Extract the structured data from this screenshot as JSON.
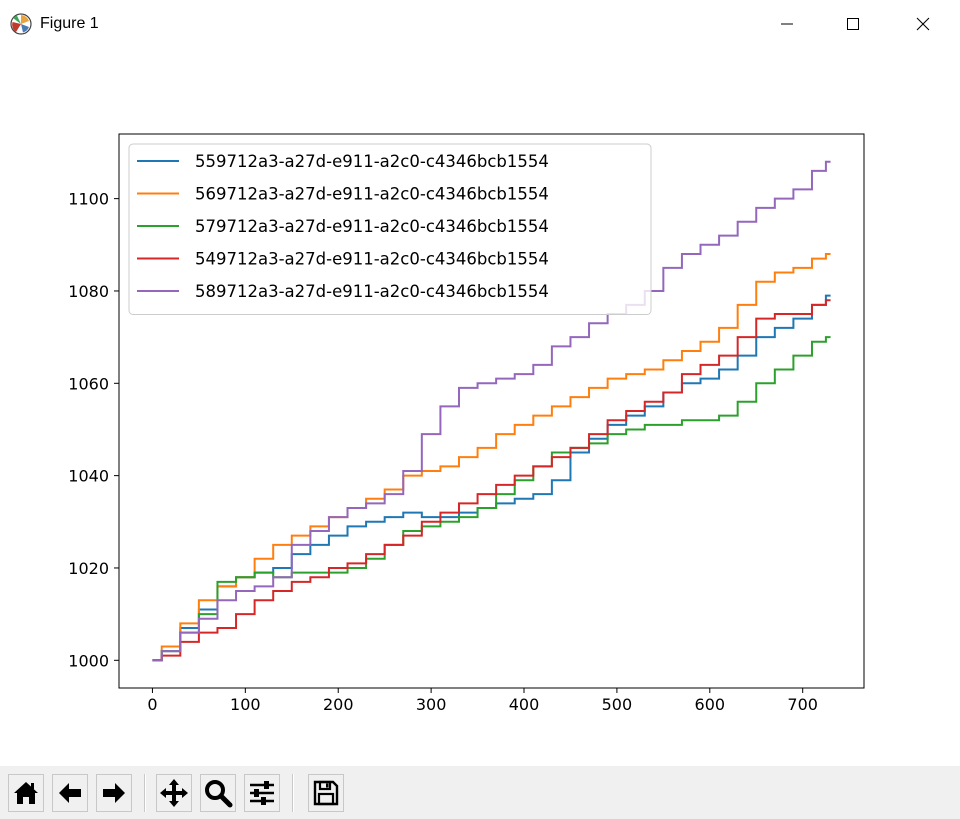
{
  "window": {
    "title": "Figure 1",
    "app_icon": "matplotlib-icon",
    "controls": [
      "minimize-icon",
      "maximize-icon",
      "close-icon"
    ]
  },
  "toolbar": {
    "buttons": [
      {
        "name": "home-button",
        "icon": "home-icon"
      },
      {
        "name": "back-button",
        "icon": "arrow-left-icon"
      },
      {
        "name": "forward-button",
        "icon": "arrow-right-icon"
      },
      {
        "name": "pan-button",
        "icon": "move-icon"
      },
      {
        "name": "zoom-button",
        "icon": "magnifier-icon"
      },
      {
        "name": "configure-subplots-button",
        "icon": "sliders-icon"
      },
      {
        "name": "save-button",
        "icon": "floppy-disk-icon"
      }
    ]
  },
  "chart_data": {
    "type": "line",
    "title": "",
    "xlabel": "",
    "ylabel": "",
    "xlim": [
      -36,
      766
    ],
    "ylim": [
      994,
      1114
    ],
    "xticks": [
      0,
      100,
      200,
      300,
      400,
      500,
      600,
      700
    ],
    "yticks": [
      1000,
      1020,
      1040,
      1060,
      1080,
      1100
    ],
    "grid": false,
    "legend_position": "upper-left",
    "series": [
      {
        "name": "559712a3-a27d-e911-a2c0-c4346bcb1554",
        "color": "#1f77b4",
        "x": [
          0,
          20,
          40,
          60,
          80,
          100,
          120,
          140,
          160,
          180,
          200,
          220,
          240,
          260,
          280,
          300,
          320,
          340,
          360,
          380,
          400,
          420,
          440,
          460,
          480,
          500,
          520,
          540,
          560,
          580,
          600,
          620,
          640,
          660,
          680,
          700,
          720,
          730
        ],
        "y": [
          1000,
          1002,
          1007,
          1011,
          1016,
          1018,
          1019,
          1020,
          1023,
          1025,
          1027,
          1029,
          1030,
          1031,
          1032,
          1031,
          1031,
          1032,
          1033,
          1034,
          1035,
          1036,
          1039,
          1045,
          1048,
          1051,
          1053,
          1055,
          1058,
          1060,
          1061,
          1063,
          1066,
          1070,
          1072,
          1074,
          1077,
          1079
        ]
      },
      {
        "name": "569712a3-a27d-e911-a2c0-c4346bcb1554",
        "color": "#ff7f0e",
        "x": [
          0,
          20,
          40,
          60,
          80,
          100,
          120,
          140,
          160,
          180,
          200,
          220,
          240,
          260,
          280,
          300,
          320,
          340,
          360,
          380,
          400,
          420,
          440,
          460,
          480,
          500,
          520,
          540,
          560,
          580,
          600,
          620,
          640,
          660,
          680,
          700,
          720,
          730
        ],
        "y": [
          1000,
          1003,
          1008,
          1013,
          1016,
          1018,
          1022,
          1025,
          1027,
          1029,
          1031,
          1033,
          1035,
          1037,
          1040,
          1041,
          1042,
          1044,
          1046,
          1049,
          1051,
          1053,
          1055,
          1057,
          1059,
          1061,
          1062,
          1063,
          1065,
          1067,
          1069,
          1072,
          1077,
          1082,
          1084,
          1085,
          1087,
          1088
        ]
      },
      {
        "name": "579712a3-a27d-e911-a2c0-c4346bcb1554",
        "color": "#2ca02c",
        "x": [
          0,
          20,
          40,
          60,
          80,
          100,
          120,
          140,
          160,
          180,
          200,
          220,
          240,
          260,
          280,
          300,
          320,
          340,
          360,
          380,
          400,
          420,
          440,
          460,
          480,
          500,
          520,
          540,
          560,
          580,
          600,
          620,
          640,
          660,
          680,
          700,
          720,
          730
        ],
        "y": [
          1000,
          1002,
          1006,
          1010,
          1017,
          1018,
          1019,
          1018,
          1019,
          1019,
          1019,
          1020,
          1022,
          1025,
          1028,
          1029,
          1030,
          1031,
          1033,
          1036,
          1039,
          1042,
          1045,
          1046,
          1047,
          1049,
          1050,
          1051,
          1051,
          1052,
          1052,
          1053,
          1056,
          1060,
          1063,
          1066,
          1069,
          1070
        ]
      },
      {
        "name": "549712a3-a27d-e911-a2c0-c4346bcb1554",
        "color": "#d62728",
        "x": [
          0,
          20,
          40,
          60,
          80,
          100,
          120,
          140,
          160,
          180,
          200,
          220,
          240,
          260,
          280,
          300,
          320,
          340,
          360,
          380,
          400,
          420,
          440,
          460,
          480,
          500,
          520,
          540,
          560,
          580,
          600,
          620,
          640,
          660,
          680,
          700,
          720,
          730
        ],
        "y": [
          1000,
          1001,
          1004,
          1006,
          1007,
          1010,
          1013,
          1015,
          1017,
          1018,
          1020,
          1021,
          1023,
          1025,
          1027,
          1030,
          1032,
          1034,
          1036,
          1038,
          1040,
          1042,
          1044,
          1046,
          1049,
          1052,
          1054,
          1056,
          1058,
          1062,
          1064,
          1066,
          1070,
          1074,
          1075,
          1075,
          1077,
          1078
        ]
      },
      {
        "name": "589712a3-a27d-e911-a2c0-c4346bcb1554",
        "color": "#9467bd",
        "x": [
          0,
          20,
          40,
          60,
          80,
          100,
          120,
          140,
          160,
          180,
          200,
          220,
          240,
          260,
          280,
          300,
          320,
          340,
          360,
          380,
          400,
          420,
          440,
          460,
          480,
          500,
          520,
          540,
          560,
          580,
          600,
          620,
          640,
          660,
          680,
          700,
          720,
          730
        ],
        "y": [
          1000,
          1002,
          1006,
          1009,
          1013,
          1015,
          1016,
          1018,
          1025,
          1028,
          1031,
          1033,
          1034,
          1036,
          1041,
          1049,
          1055,
          1059,
          1060,
          1061,
          1062,
          1064,
          1068,
          1070,
          1073,
          1075,
          1077,
          1080,
          1085,
          1088,
          1090,
          1092,
          1095,
          1098,
          1100,
          1102,
          1106,
          1108
        ]
      }
    ]
  }
}
